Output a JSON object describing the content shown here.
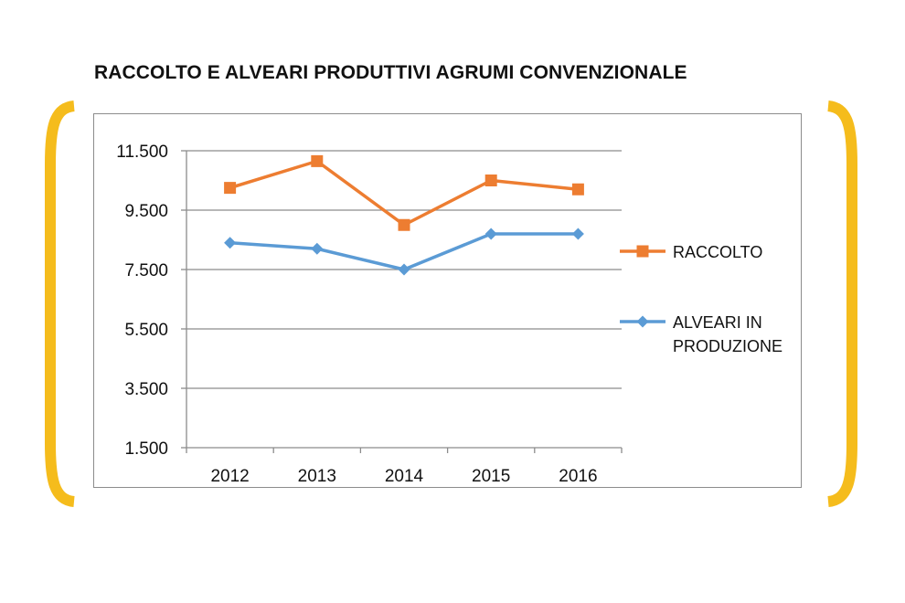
{
  "chart_data": {
    "type": "line",
    "title": "RACCOLTO E ALVEARI PRODUTTIVI AGRUMI CONVENZIONALE",
    "xlabel": "",
    "ylabel": "",
    "categories": [
      "2012",
      "2013",
      "2014",
      "2015",
      "2016"
    ],
    "ylim": [
      1500,
      11500
    ],
    "yticks": [
      1500,
      3500,
      5500,
      7500,
      9500,
      11500
    ],
    "ytick_labels": [
      "1.500",
      "3.500",
      "5.500",
      "7.500",
      "9.500",
      "11.500"
    ],
    "series": [
      {
        "name": "RACCOLTO",
        "legend_lines": [
          "RACCOLTO"
        ],
        "marker": "square",
        "color": "#ED7D31",
        "values": [
          10250,
          11150,
          9000,
          10500,
          10200
        ]
      },
      {
        "name": "ALVEARI IN PRODUZIONE",
        "legend_lines": [
          "ALVEARI IN",
          "PRODUZIONE"
        ],
        "marker": "diamond",
        "color": "#5B9BD5",
        "values": [
          8400,
          8200,
          7500,
          8700,
          8700
        ]
      }
    ],
    "grid": true,
    "legend_position": "right"
  },
  "style": {
    "bracket_color": "#F5BC1C",
    "gridline_color": "#8c8c8c"
  }
}
